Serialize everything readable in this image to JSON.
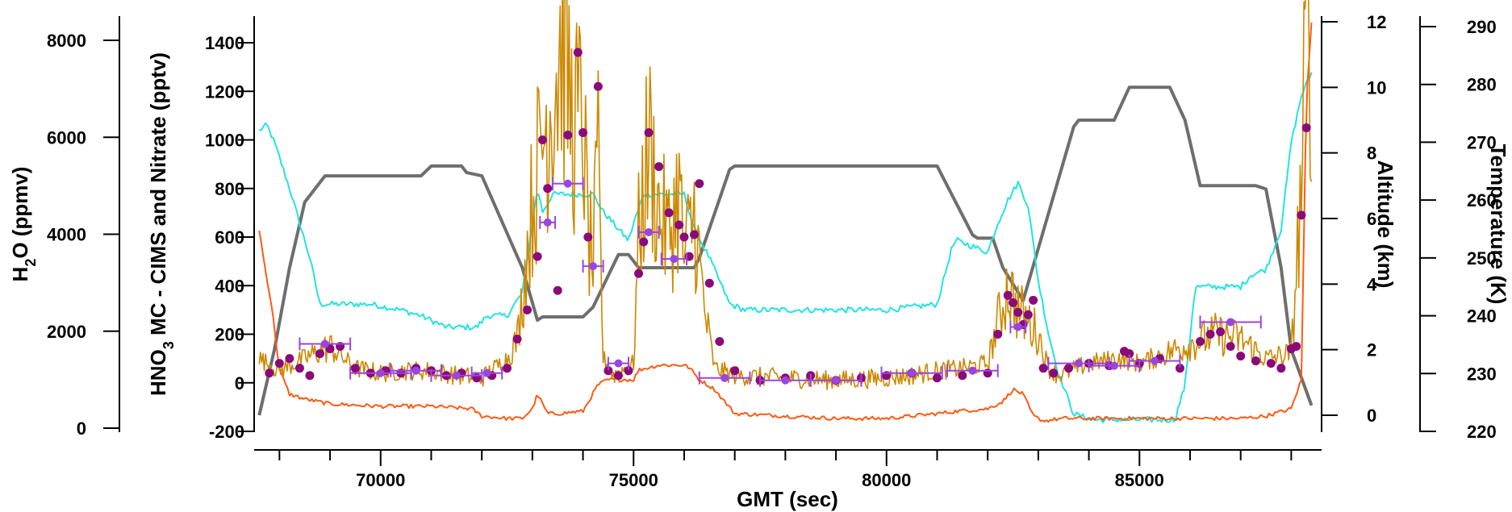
{
  "chart_data": {
    "type": "line",
    "xlabel": "GMT (sec)",
    "xlim": [
      67500,
      88600
    ],
    "x_ticks": [
      70000,
      75000,
      80000,
      85000
    ],
    "x_tick_labels": [
      "70000",
      "75000",
      "80000",
      "85000"
    ],
    "axes": {
      "h2o": {
        "label_main": "H",
        "label_sub": "2",
        "label_rest": "O (ppmv)",
        "ylim": [
          0,
          8000
        ],
        "ticks": [
          0,
          2000,
          4000,
          6000,
          8000
        ],
        "tick_labels": [
          "0",
          "2000",
          "4000",
          "6000",
          "8000"
        ]
      },
      "hno3": {
        "label_main": "HNO",
        "label_sub": "3",
        "label_rest": " MC - CIMS and Nitrate (pptv)",
        "ylim": [
          -200,
          1400
        ],
        "ticks": [
          -200,
          0,
          200,
          400,
          600,
          800,
          1000,
          1200,
          1400
        ],
        "tick_labels": [
          "-200",
          "0",
          "200",
          "400",
          "600",
          "800",
          "1000",
          "1200",
          "1400"
        ]
      },
      "altitude": {
        "label": "Altitude (km)",
        "ylim": [
          0,
          12
        ],
        "ticks": [
          0,
          2,
          4,
          6,
          8,
          10,
          12
        ],
        "tick_labels": [
          "0",
          "2",
          "4",
          "6",
          "8",
          "10",
          "12"
        ]
      },
      "temperature": {
        "label": "Temperature (K)",
        "ylim": [
          220,
          290
        ],
        "ticks": [
          220,
          230,
          240,
          250,
          260,
          270,
          280,
          290
        ],
        "tick_labels": [
          "220",
          "230",
          "240",
          "250",
          "260",
          "270",
          "280",
          "290"
        ]
      }
    },
    "colors": {
      "altitude": "#6e6e6e",
      "temperature": "#22e3e3",
      "h2o": "#ff5a14",
      "hno3_cims": "#cc8800",
      "nitrate": "#8b0a7a",
      "nitrate_avg": "#9b45e0"
    },
    "series": [
      {
        "key": "altitude",
        "axis": "altitude",
        "x": [
          67600,
          67900,
          68200,
          68500,
          68900,
          70800,
          71000,
          71600,
          71700,
          72000,
          72800,
          73100,
          73200,
          74000,
          74200,
          74700,
          74900,
          75100,
          75200,
          76200,
          76300,
          76900,
          77000,
          81000,
          81200,
          81700,
          81800,
          82100,
          82300,
          82500,
          82700,
          83700,
          83800,
          84200,
          84500,
          84800,
          85600,
          85900,
          86200,
          87300,
          87500,
          87800,
          88000,
          88400
        ],
        "y": [
          0,
          2.0,
          4.5,
          6.5,
          7.3,
          7.3,
          7.6,
          7.6,
          7.4,
          7.3,
          4.5,
          2.9,
          3.0,
          3.0,
          3.3,
          4.9,
          4.9,
          4.5,
          4.5,
          4.5,
          4.8,
          7.5,
          7.6,
          7.6,
          7.0,
          5.5,
          5.4,
          5.4,
          4.5,
          4.0,
          3.5,
          8.8,
          9.0,
          9.0,
          9.0,
          10.0,
          10.0,
          9.0,
          7.0,
          7.0,
          6.9,
          4.5,
          2.0,
          0.3
        ]
      },
      {
        "key": "temperature",
        "axis": "temperature",
        "x": [
          67600,
          67750,
          67900,
          68200,
          68600,
          68800,
          69200,
          69800,
          70400,
          70800,
          71300,
          71900,
          72100,
          72500,
          72800,
          73000,
          73100,
          73200,
          73400,
          74200,
          74400,
          74600,
          74900,
          75000,
          75200,
          76000,
          76200,
          76500,
          76900,
          77200,
          80000,
          81000,
          81300,
          81400,
          82000,
          82200,
          82400,
          82600,
          82800,
          83000,
          83200,
          83400,
          83700,
          84100,
          85700,
          85900,
          86100,
          87000,
          87200,
          87500,
          87800,
          88000,
          88200,
          88400
        ],
        "y": [
          272,
          273,
          270,
          262,
          250,
          242,
          242,
          242,
          241,
          240,
          238,
          238,
          240,
          240,
          244,
          256,
          262,
          258,
          261,
          261,
          258,
          256,
          253,
          256,
          261,
          261,
          255,
          250,
          242,
          241,
          241,
          242,
          252,
          253,
          251,
          256,
          260,
          263,
          259,
          246,
          237,
          230,
          223,
          222,
          222,
          228,
          245,
          245,
          247,
          248,
          255,
          270,
          278,
          282
        ]
      },
      {
        "key": "h2o",
        "axis": "h2o",
        "x": [
          67600,
          67700,
          67850,
          68000,
          68200,
          68500,
          69000,
          70000,
          71000,
          71800,
          72000,
          72500,
          72800,
          73000,
          73100,
          73300,
          73500,
          74000,
          74300,
          74500,
          74700,
          75000,
          75100,
          75300,
          75500,
          76000,
          76100,
          76300,
          76600,
          77000,
          78000,
          79000,
          80000,
          81000,
          81400,
          82000,
          82300,
          82500,
          82700,
          82900,
          83100,
          83500,
          84000,
          85000,
          86000,
          87000,
          87500,
          88000,
          88200,
          88300,
          88400
        ],
        "y": [
          4100,
          3400,
          2500,
          1200,
          700,
          600,
          500,
          450,
          450,
          400,
          250,
          200,
          200,
          400,
          700,
          300,
          300,
          350,
          900,
          1000,
          1000,
          1000,
          1200,
          1250,
          1300,
          1300,
          1250,
          1000,
          800,
          300,
          250,
          200,
          200,
          300,
          350,
          400,
          550,
          800,
          700,
          250,
          150,
          200,
          200,
          200,
          200,
          200,
          250,
          400,
          1000,
          6800,
          8400
        ]
      },
      {
        "key": "hno3_cims",
        "axis": "hno3",
        "x": [
          67600,
          68000,
          68500,
          69000,
          69500,
          70000,
          70500,
          71000,
          71500,
          72000,
          72500,
          72700,
          72800,
          73000,
          73200,
          73400,
          73600,
          73800,
          74000,
          74100,
          74200,
          74300,
          74400,
          74600,
          75000,
          75100,
          75300,
          75500,
          75700,
          75900,
          76000,
          76200,
          76400,
          76600,
          77000,
          78000,
          79000,
          80000,
          80500,
          81000,
          81500,
          82000,
          82200,
          82400,
          82500,
          82600,
          82800,
          83000,
          83200,
          83400,
          84000,
          84600,
          85000,
          85500,
          86000,
          86500,
          87000,
          87500,
          88000,
          88200,
          88300,
          88400
        ],
        "y": [
          100,
          50,
          100,
          150,
          60,
          40,
          50,
          50,
          30,
          20,
          100,
          180,
          350,
          750,
          1000,
          1200,
          1450,
          1050,
          1100,
          600,
          500,
          900,
          100,
          30,
          80,
          600,
          1000,
          700,
          600,
          800,
          500,
          700,
          300,
          60,
          30,
          20,
          10,
          20,
          30,
          50,
          60,
          80,
          250,
          400,
          350,
          300,
          250,
          200,
          60,
          30,
          80,
          100,
          80,
          120,
          160,
          200,
          180,
          100,
          120,
          800,
          1400,
          1450
        ]
      },
      {
        "key": "nitrate",
        "axis": "hno3",
        "mode": "markers",
        "x": [
          67800,
          68000,
          68200,
          68400,
          68600,
          68800,
          69000,
          69200,
          69500,
          69800,
          70100,
          70400,
          70700,
          71000,
          71300,
          71600,
          71900,
          72200,
          72500,
          72700,
          72900,
          73100,
          73200,
          73300,
          73500,
          73700,
          73900,
          74000,
          74100,
          74300,
          74500,
          74700,
          74900,
          75100,
          75200,
          75300,
          75500,
          75700,
          75900,
          76000,
          76100,
          76200,
          76300,
          76500,
          76700,
          77000,
          77500,
          78000,
          78500,
          79000,
          79500,
          80000,
          80500,
          81000,
          81500,
          82000,
          82200,
          82400,
          82500,
          82600,
          82700,
          82800,
          82900,
          83100,
          83300,
          83600,
          84000,
          84400,
          84700,
          84800,
          85000,
          85400,
          85800,
          86200,
          86400,
          86600,
          86800,
          87000,
          87300,
          87600,
          87800,
          88000,
          88100,
          88200,
          88300
        ],
        "y": [
          40,
          80,
          100,
          60,
          30,
          120,
          140,
          150,
          60,
          40,
          50,
          40,
          60,
          50,
          30,
          40,
          20,
          30,
          60,
          180,
          300,
          520,
          1000,
          800,
          380,
          1020,
          1360,
          1030,
          600,
          1220,
          50,
          30,
          50,
          450,
          580,
          1030,
          890,
          700,
          650,
          600,
          520,
          610,
          820,
          410,
          170,
          50,
          10,
          20,
          30,
          10,
          20,
          30,
          40,
          20,
          30,
          40,
          200,
          360,
          330,
          290,
          240,
          280,
          340,
          60,
          40,
          60,
          80,
          70,
          130,
          120,
          80,
          100,
          60,
          170,
          200,
          210,
          150,
          110,
          90,
          80,
          60,
          140,
          150,
          690,
          1050
        ]
      },
      {
        "key": "nitrate_avg",
        "axis": "hno3",
        "mode": "markers-errorbars",
        "x": [
          68900,
          70000,
          70700,
          71500,
          72100,
          73300,
          73700,
          74200,
          74700,
          75300,
          75800,
          76800,
          78000,
          79000,
          80500,
          81700,
          82600,
          83800,
          84500,
          85300,
          86800
        ],
        "y": [
          160,
          40,
          50,
          30,
          40,
          660,
          820,
          480,
          80,
          620,
          510,
          20,
          10,
          10,
          40,
          50,
          230,
          80,
          70,
          90,
          250
        ],
        "xerr": [
          500,
          600,
          500,
          500,
          300,
          150,
          300,
          200,
          200,
          200,
          250,
          500,
          500,
          500,
          600,
          500,
          150,
          600,
          500,
          500,
          600
        ]
      }
    ]
  }
}
